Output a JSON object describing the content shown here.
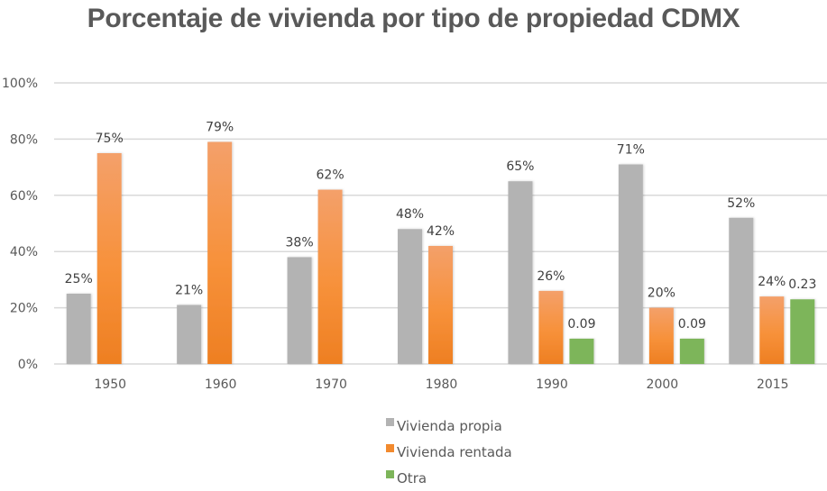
{
  "chart_data": {
    "type": "bar",
    "title": "Porcentaje de vivienda por tipo de propiedad CDMX",
    "xlabel": "",
    "ylabel": "",
    "ylim": [
      0,
      1
    ],
    "yticks": [
      0,
      0.2,
      0.4,
      0.6,
      0.8,
      1.0
    ],
    "ytick_labels": [
      "0%",
      "20%",
      "40%",
      "60%",
      "80%",
      "100%"
    ],
    "grid": true,
    "legend_position": "bottom",
    "categories": [
      "1950",
      "1960",
      "1970",
      "1980",
      "1990",
      "2000",
      "2015"
    ],
    "series": [
      {
        "name": "Vivienda propia",
        "color": "#b3b3b3",
        "values": [
          0.25,
          0.21,
          0.38,
          0.48,
          0.65,
          0.71,
          0.52
        ],
        "labels": [
          "25%",
          "21%",
          "38%",
          "48%",
          "65%",
          "71%",
          "52%"
        ]
      },
      {
        "name": "Vivienda rentada",
        "color": "#f28a2e",
        "color_top": "#f4a06a",
        "values": [
          0.75,
          0.79,
          0.62,
          0.42,
          0.26,
          0.2,
          0.24
        ],
        "labels": [
          "75%",
          "79%",
          "62%",
          "42%",
          "26%",
          "20%",
          "24%"
        ]
      },
      {
        "name": "Otra",
        "color": "#7db55a",
        "values": [
          null,
          null,
          null,
          null,
          0.09,
          0.09,
          0.23
        ],
        "labels": [
          "",
          "",
          "",
          "",
          "0.09",
          "0.09",
          "0.23"
        ]
      }
    ]
  }
}
